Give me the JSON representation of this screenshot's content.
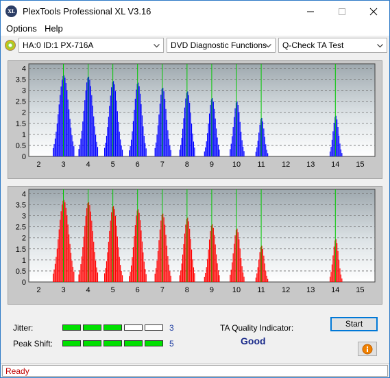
{
  "window": {
    "title": "PlexTools Professional XL V3.16",
    "icon_name": "plextools-logo-icon",
    "icon_text": "XL"
  },
  "menu": {
    "items": [
      "Options",
      "Help"
    ]
  },
  "toolbar": {
    "drive": "HA:0 ID:1  PX-716A",
    "function": "DVD Diagnostic Functions",
    "test": "Q-Check TA Test"
  },
  "chart_data": [
    {
      "type": "bar",
      "name": "",
      "color": "#0000ff",
      "marker_color": "#00c800",
      "xlim": [
        1.6,
        15.6
      ],
      "ylim": [
        0,
        4.2
      ],
      "x_ticks": [
        2,
        3,
        4,
        5,
        6,
        7,
        8,
        9,
        10,
        11,
        12,
        13,
        14,
        15
      ],
      "y_ticks": [
        "0",
        "0.5",
        "1",
        "1.5",
        "2",
        "2.5",
        "3",
        "3.5",
        "4"
      ],
      "y_tick_values": [
        0,
        0.5,
        1,
        1.5,
        2,
        2.5,
        3,
        3.5,
        4
      ],
      "markers": [
        3,
        4,
        5,
        6,
        7,
        8,
        9,
        10,
        11,
        14
      ],
      "peaks": [
        {
          "x": 3.0,
          "height": 3.68,
          "width": 0.36
        },
        {
          "x": 4.0,
          "height": 3.62,
          "width": 0.32
        },
        {
          "x": 5.0,
          "height": 3.42,
          "width": 0.3
        },
        {
          "x": 6.0,
          "height": 3.35,
          "width": 0.28
        },
        {
          "x": 7.0,
          "height": 3.12,
          "width": 0.27
        },
        {
          "x": 8.0,
          "height": 2.95,
          "width": 0.26
        },
        {
          "x": 9.0,
          "height": 2.65,
          "width": 0.25
        },
        {
          "x": 10.0,
          "height": 2.5,
          "width": 0.24
        },
        {
          "x": 11.0,
          "height": 1.75,
          "width": 0.2
        },
        {
          "x": 14.0,
          "height": 1.85,
          "width": 0.2
        }
      ],
      "grid": true
    },
    {
      "type": "bar",
      "name": "",
      "color": "#ff0000",
      "marker_color": "#00c800",
      "xlim": [
        1.6,
        15.6
      ],
      "ylim": [
        0,
        4.2
      ],
      "x_ticks": [
        2,
        3,
        4,
        5,
        6,
        7,
        8,
        9,
        10,
        11,
        12,
        13,
        14,
        15
      ],
      "y_ticks": [
        "0",
        "0.5",
        "1",
        "1.5",
        "2",
        "2.5",
        "3",
        "3.5",
        "4"
      ],
      "y_tick_values": [
        0,
        0.5,
        1,
        1.5,
        2,
        2.5,
        3,
        3.5,
        4
      ],
      "markers": [
        3,
        4,
        5,
        6,
        7,
        8,
        9,
        10,
        11,
        14
      ],
      "peaks": [
        {
          "x": 3.0,
          "height": 3.72,
          "width": 0.36
        },
        {
          "x": 4.0,
          "height": 3.62,
          "width": 0.32
        },
        {
          "x": 5.0,
          "height": 3.45,
          "width": 0.3
        },
        {
          "x": 6.0,
          "height": 3.3,
          "width": 0.28
        },
        {
          "x": 7.0,
          "height": 3.1,
          "width": 0.27
        },
        {
          "x": 8.0,
          "height": 2.92,
          "width": 0.26
        },
        {
          "x": 9.0,
          "height": 2.62,
          "width": 0.25
        },
        {
          "x": 10.0,
          "height": 2.42,
          "width": 0.24
        },
        {
          "x": 11.0,
          "height": 1.65,
          "width": 0.2
        },
        {
          "x": 14.0,
          "height": 1.95,
          "width": 0.2
        }
      ],
      "grid": true
    }
  ],
  "results": {
    "jitter_label": "Jitter:",
    "jitter_value": "3",
    "jitter_segments": [
      true,
      true,
      true,
      false,
      false
    ],
    "peak_shift_label": "Peak Shift:",
    "peak_shift_value": "5",
    "peak_shift_segments": [
      true,
      true,
      true,
      true,
      true
    ],
    "ta_quality_label": "TA Quality Indicator:",
    "ta_quality_value": "Good",
    "segment_on_color": "#00e000",
    "segment_off_color": "#ffffff"
  },
  "buttons": {
    "start": "Start",
    "info_icon": "info-icon"
  },
  "status": {
    "text": "Ready"
  }
}
